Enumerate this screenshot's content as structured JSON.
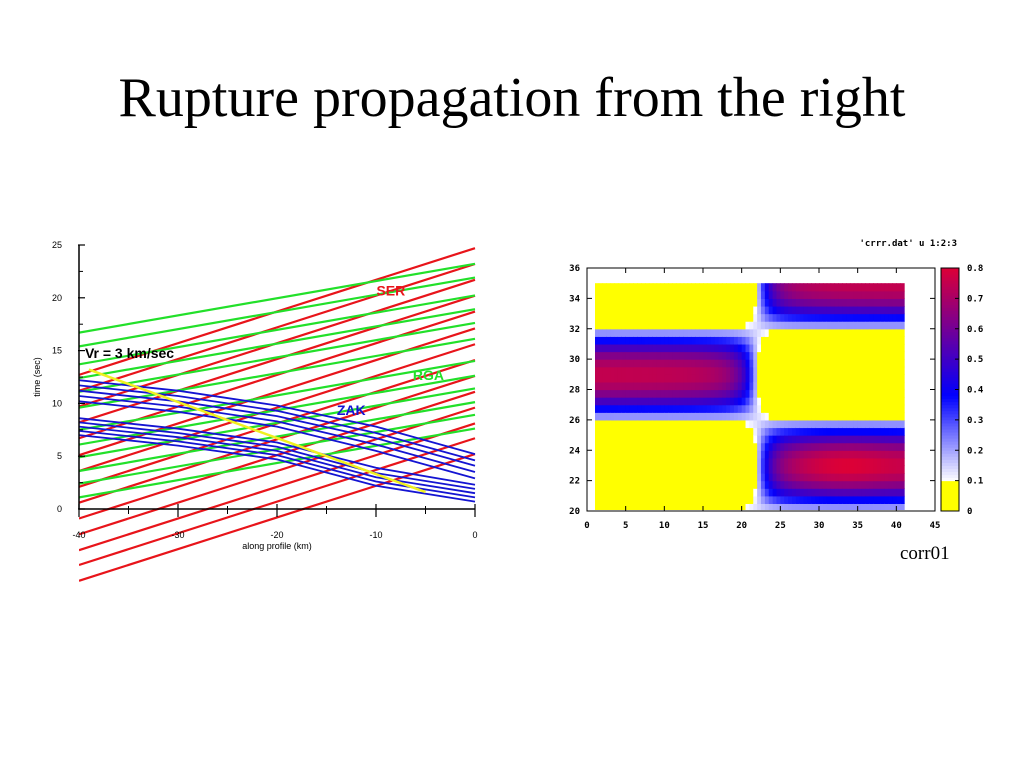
{
  "slide": {
    "title": "Rupture propagation from the right",
    "caption": "corr01"
  },
  "chart_data": [
    {
      "type": "line",
      "xlabel": "along profile (km)",
      "ylabel": "time (sec)",
      "xlim": [
        -40,
        0
      ],
      "ylim": [
        0,
        25
      ],
      "xticks": [
        "-40",
        "-30",
        "-20",
        "-10",
        "0"
      ],
      "yticks": [
        "0",
        "5",
        "10",
        "15",
        "20",
        "25"
      ],
      "annotation": "Vr = 3 km/sec",
      "colors": {
        "SER": "#e8141a",
        "RGA": "#22e02a",
        "ZAK": "#1414d2",
        "rupture": "#f0f020"
      },
      "series": [
        {
          "name": "SER",
          "label_at": [
            -8.5,
            20.2
          ],
          "offsets": [
            -6.8,
            -5.3,
            -3.9,
            -2.4,
            -0.9,
            0.6,
            2.1,
            3.6,
            5.1,
            6.7,
            8.2,
            9.7,
            11.2,
            12.7
          ],
          "slope": 0.3,
          "x_range": [
            -40,
            0
          ]
        },
        {
          "name": "RGA",
          "label_at": [
            -4.7,
            12.2
          ],
          "offsets": [
            1.1,
            2.4,
            3.6,
            4.9,
            6.1,
            7.5,
            9.6,
            11.1,
            12.4,
            13.7,
            15.4,
            16.7
          ],
          "slope": 0.163,
          "x_range": [
            -40,
            0
          ]
        },
        {
          "name": "ZAK",
          "label_at": [
            -12.5,
            8.9
          ],
          "curves": [
            [
              [
                -40,
                12.2
              ],
              [
                -30,
                11.2
              ],
              [
                -20,
                9.8
              ],
              [
                -10,
                7.8
              ],
              [
                0,
                5.2
              ]
            ],
            [
              [
                -40,
                11.7
              ],
              [
                -30,
                10.7
              ],
              [
                -20,
                9.3
              ],
              [
                -10,
                7.2
              ],
              [
                0,
                4.6
              ]
            ],
            [
              [
                -40,
                11.2
              ],
              [
                -30,
                10.2
              ],
              [
                -20,
                8.8
              ],
              [
                -10,
                6.7
              ],
              [
                0,
                4.1
              ]
            ],
            [
              [
                -40,
                10.7
              ],
              [
                -30,
                9.7
              ],
              [
                -20,
                8.3
              ],
              [
                -10,
                6.1
              ],
              [
                0,
                3.5
              ]
            ],
            [
              [
                -40,
                10.2
              ],
              [
                -30,
                9.2
              ],
              [
                -20,
                7.8
              ],
              [
                -10,
                5.5
              ],
              [
                0,
                2.9
              ]
            ],
            [
              [
                -40,
                8.6
              ],
              [
                -30,
                7.6
              ],
              [
                -20,
                6.3
              ],
              [
                -10,
                3.9
              ],
              [
                0,
                2.3
              ]
            ],
            [
              [
                -40,
                8.2
              ],
              [
                -30,
                7.2
              ],
              [
                -20,
                5.9
              ],
              [
                -10,
                3.4
              ],
              [
                0,
                1.9
              ]
            ],
            [
              [
                -40,
                7.8
              ],
              [
                -30,
                6.8
              ],
              [
                -20,
                5.5
              ],
              [
                -10,
                3.0
              ],
              [
                0,
                1.5
              ]
            ],
            [
              [
                -40,
                7.4
              ],
              [
                -30,
                6.4
              ],
              [
                -20,
                5.1
              ],
              [
                -10,
                2.6
              ],
              [
                0,
                1.1
              ]
            ],
            [
              [
                -40,
                7.0
              ],
              [
                -30,
                6.0
              ],
              [
                -20,
                4.7
              ],
              [
                -10,
                2.2
              ],
              [
                0,
                0.7
              ]
            ]
          ]
        },
        {
          "name": "rupture",
          "points": [
            [
              -39,
              13.2
            ],
            [
              -5,
              1.6
            ]
          ]
        }
      ]
    },
    {
      "type": "heatmap",
      "title": "'crrr.dat' u 1:2:3",
      "xlim": [
        0,
        45
      ],
      "ylim": [
        20,
        36
      ],
      "xticks": [
        "0",
        "5",
        "10",
        "15",
        "20",
        "25",
        "30",
        "35",
        "40",
        "45"
      ],
      "yticks": [
        "20",
        "22",
        "24",
        "26",
        "28",
        "30",
        "32",
        "34",
        "36"
      ],
      "data_extent": {
        "x": [
          1,
          41
        ],
        "y": [
          20,
          35
        ]
      },
      "colorbar": {
        "range": [
          0,
          0.8
        ],
        "ticks": [
          "0",
          "0.1",
          "0.2",
          "0.3",
          "0.4",
          "0.5",
          "0.6",
          "0.7",
          "0.8"
        ]
      },
      "peaks": [
        {
          "x": 9,
          "y": 29,
          "value": 0.56
        },
        {
          "x": 33,
          "y": 23,
          "value": 0.62
        }
      ]
    }
  ]
}
